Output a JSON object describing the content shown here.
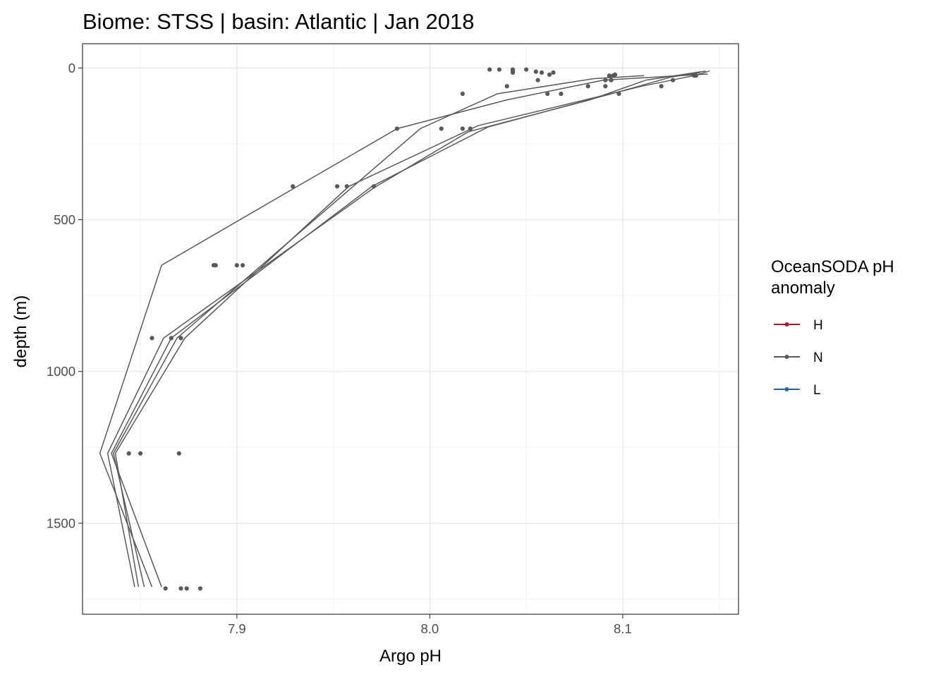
{
  "chart_data": {
    "type": "line",
    "title": "Biome: STSS | basin: Atlantic  | Jan 2018",
    "xlabel": "Argo pH",
    "ylabel": "depth (m)",
    "xlim": [
      7.82,
      8.16
    ],
    "ylim": [
      -80,
      1800
    ],
    "y_reversed": true,
    "x_ticks": [
      7.9,
      8.0,
      8.1
    ],
    "x_tick_labels": [
      "7.9",
      "8.0",
      "8.1"
    ],
    "y_ticks": [
      0,
      500,
      1000,
      1500
    ],
    "y_tick_labels": [
      "0",
      "500",
      "1000",
      "1500"
    ],
    "grid": true,
    "legend": {
      "title": [
        "OceanSODA pH",
        "anomaly"
      ],
      "placement": "right",
      "entries": [
        {
          "label": "H",
          "color": "#b2182b"
        },
        {
          "label": "N",
          "color": "#595959"
        },
        {
          "label": "L",
          "color": "#2166ac"
        }
      ]
    },
    "series": [
      {
        "name": "N",
        "color": "#595959",
        "x": [
          8.111,
          8.085,
          8.035,
          7.995,
          7.869,
          7.836,
          7.852
        ],
        "y": [
          25,
          35,
          85,
          200,
          890,
          1270,
          1710
        ]
      },
      {
        "name": "N",
        "color": "#595959",
        "x": [
          8.145,
          8.137,
          8.11,
          8.025,
          7.958,
          7.873,
          7.837,
          7.849
        ],
        "y": [
          10,
          25,
          60,
          190,
          390,
          890,
          1270,
          1710
        ]
      },
      {
        "name": "N",
        "color": "#595959",
        "x": [
          8.14,
          8.125,
          8.1,
          8.03,
          7.97,
          7.866,
          7.835,
          7.861
        ],
        "y": [
          15,
          30,
          75,
          195,
          390,
          890,
          1270,
          1710
        ]
      },
      {
        "name": "N",
        "color": "#595959",
        "x": [
          8.143,
          8.112,
          8.083,
          8.02,
          7.971,
          7.862,
          7.833,
          7.847
        ],
        "y": [
          10,
          40,
          105,
          210,
          395,
          890,
          1270,
          1710
        ]
      },
      {
        "name": "N",
        "color": "#595959",
        "x": [
          8.144,
          8.09,
          8.04,
          7.983,
          7.93,
          7.861,
          7.829,
          7.856
        ],
        "y": [
          20,
          40,
          105,
          200,
          395,
          650,
          1270,
          1710
        ]
      }
    ],
    "points": {
      "name": "N",
      "color": "#595959",
      "x": [
        8.031,
        8.036,
        8.043,
        8.043,
        8.043,
        8.05,
        8.055,
        8.058,
        8.062,
        8.064,
        8.056,
        8.093,
        8.096,
        8.095,
        8.091,
        8.094,
        8.137,
        8.138,
        8.126,
        8.04,
        8.091,
        8.082,
        8.12,
        8.017,
        8.061,
        8.068,
        8.098,
        7.983,
        8.006,
        8.017,
        8.021,
        7.929,
        7.952,
        7.957,
        7.971,
        7.888,
        7.889,
        7.9,
        7.903,
        7.856,
        7.866,
        7.871,
        7.844,
        7.85,
        7.87,
        7.863,
        7.871,
        7.874,
        7.881
      ],
      "y": [
        5,
        5,
        5,
        10,
        15,
        5,
        12,
        15,
        22,
        15,
        40,
        25,
        22,
        25,
        40,
        40,
        25,
        25,
        40,
        60,
        60,
        60,
        60,
        85,
        85,
        85,
        85,
        200,
        200,
        200,
        200,
        390,
        390,
        390,
        390,
        650,
        650,
        650,
        650,
        890,
        890,
        890,
        1270,
        1270,
        1270,
        1715,
        1715,
        1715,
        1715
      ]
    }
  }
}
